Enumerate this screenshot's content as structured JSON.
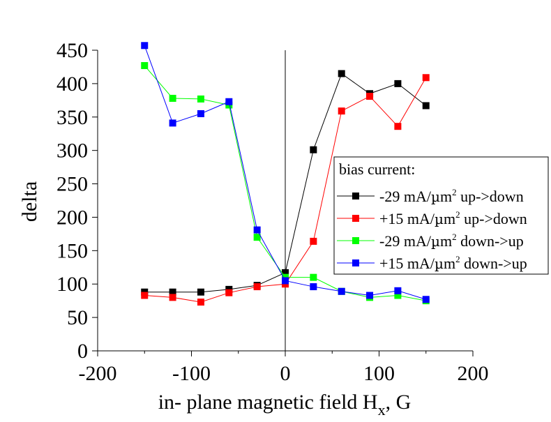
{
  "chart_data": {
    "type": "line",
    "xlabel": "in- plane magnetic field H",
    "xlabel_subscript": "x",
    "xlabel_suffix": ", G",
    "ylabel": "delta",
    "xlim": [
      -200,
      200
    ],
    "ylim": [
      0,
      450
    ],
    "xticks": [
      -200,
      -100,
      0,
      100,
      200
    ],
    "yticks": [
      0,
      50,
      100,
      150,
      200,
      250,
      300,
      350,
      400,
      450
    ],
    "grid": false,
    "legend_position": "right",
    "legend_title": "bias current:",
    "series": [
      {
        "name": "-29 mA/µm² up->down",
        "legend_parts": [
          "-29 mA/",
          "µ",
          "m",
          "2",
          " up->down"
        ],
        "color": "#000000",
        "x": [
          -150,
          -120,
          -90,
          -60,
          -30,
          0,
          30,
          60,
          90,
          120,
          150
        ],
        "y": [
          88,
          88,
          88,
          92,
          98,
          117,
          301,
          415,
          385,
          400,
          367
        ]
      },
      {
        "name": "+15 mA/µm² up->down",
        "legend_parts": [
          "+15 mA/",
          "µ",
          "m",
          "2",
          " up->down"
        ],
        "color": "#ff0000",
        "x": [
          -150,
          -120,
          -90,
          -60,
          -30,
          0,
          30,
          60,
          90,
          120,
          150
        ],
        "y": [
          83,
          80,
          73,
          87,
          96,
          100,
          164,
          359,
          381,
          336,
          409
        ]
      },
      {
        "name": "-29 mA/µm² down->up",
        "legend_parts": [
          "-29 mA/",
          "µ",
          "m",
          "2",
          " down->up"
        ],
        "color": "#00ff00",
        "x": [
          -150,
          -120,
          -90,
          -60,
          -30,
          0,
          30,
          60,
          90,
          120,
          150
        ],
        "y": [
          427,
          378,
          377,
          368,
          170,
          110,
          110,
          89,
          80,
          83,
          75
        ]
      },
      {
        "name": "+15 mA/µm² down->up",
        "legend_parts": [
          "+15 mA/",
          "µ",
          "m",
          "2",
          " down->up"
        ],
        "color": "#0000ff",
        "x": [
          -150,
          -120,
          -90,
          -60,
          -30,
          0,
          30,
          60,
          90,
          120,
          150
        ],
        "y": [
          457,
          341,
          355,
          373,
          181,
          105,
          96,
          89,
          83,
          90,
          77
        ]
      }
    ]
  }
}
